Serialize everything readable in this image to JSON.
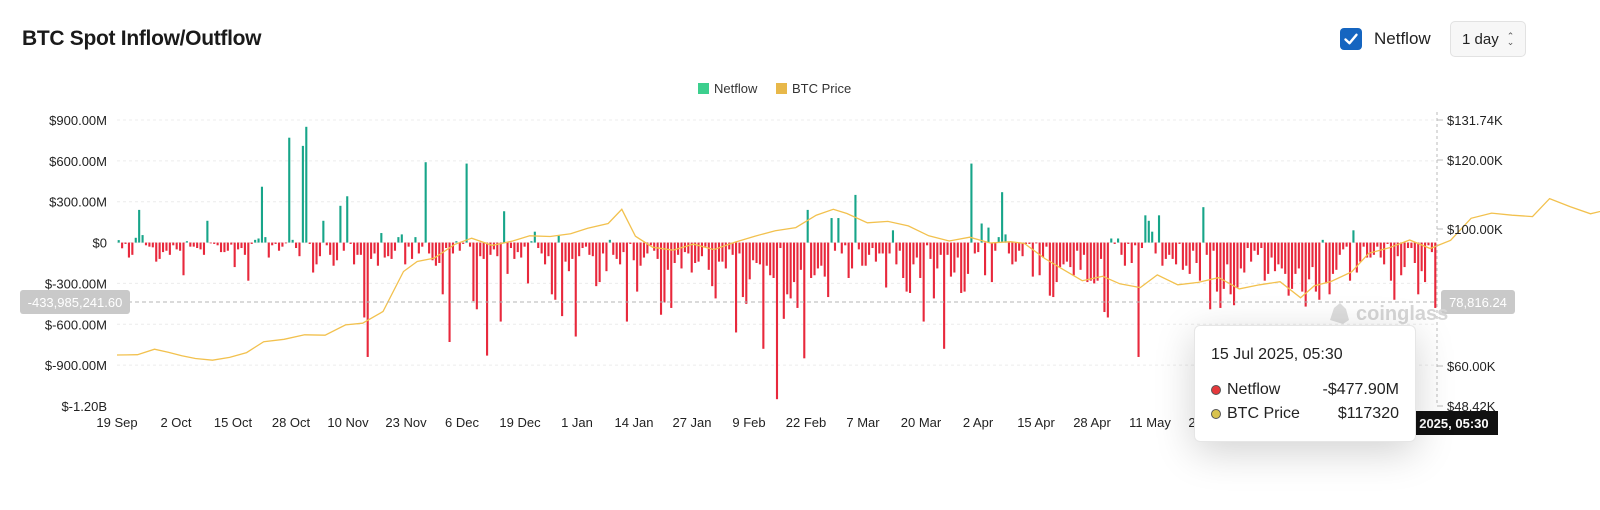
{
  "title": "BTC Spot Inflow/Outflow",
  "controls": {
    "netflow_toggle": {
      "label": "Netflow",
      "checked": true
    },
    "interval": "1 day"
  },
  "watermark": "coinglass",
  "crosshair": {
    "left_value": "-433,985,241.60",
    "right_value": "78,816.24",
    "bottom_value": "l 2025, 05:30"
  },
  "tooltip": {
    "date": "15 Jul 2025, 05:30",
    "rows": [
      {
        "label": "Netflow",
        "value": "-$477.90M",
        "color": "#e5383b"
      },
      {
        "label": "BTC Price",
        "value": "$117320",
        "color": "#d9c34e"
      }
    ]
  },
  "colors": {
    "inflow": "#17a589",
    "outflow": "#e8283c",
    "price": "#f2c14e",
    "legend_netflow": "#3ccf8e",
    "legend_price": "#e8b84a"
  },
  "chart_data": {
    "type": "bar",
    "legend": [
      "Netflow",
      "BTC Price"
    ],
    "legend_position": "top-center",
    "x_ticks": [
      "19 Sep",
      "2 Oct",
      "15 Oct",
      "28 Oct",
      "10 Nov",
      "23 Nov",
      "6 Dec",
      "19 Dec",
      "1 Jan",
      "14 Jan",
      "27 Jan",
      "9 Feb",
      "22 Feb",
      "7 Mar",
      "20 Mar",
      "2 Apr",
      "15 Apr",
      "28 Apr",
      "11 May",
      "2"
    ],
    "y_left": {
      "ticks": [
        "$900.00M",
        "$600.00M",
        "$300.00M",
        "$0",
        "$-300.00M",
        "$-600.00M",
        "$-900.00M",
        "$-1.20B"
      ],
      "range": [
        -1200,
        900
      ],
      "unit": "M USD"
    },
    "y_right": {
      "ticks": [
        "$131.74K",
        "$120.00K",
        "$100.00K",
        "$60.00K",
        "$48.42K"
      ],
      "range": [
        48420,
        131740
      ],
      "unit": "USD"
    },
    "grid": true,
    "series": [
      {
        "name": "Netflow",
        "type": "bar",
        "unit": "M USD",
        "values": [
          18,
          -42,
          -10,
          -110,
          -90,
          35,
          240,
          55,
          -20,
          -30,
          -35,
          -140,
          -120,
          -70,
          -60,
          -90,
          -20,
          -50,
          -60,
          -240,
          10,
          -30,
          -30,
          -40,
          -50,
          -90,
          160,
          -5,
          -10,
          -20,
          -70,
          -70,
          -60,
          -15,
          -180,
          -50,
          -40,
          -90,
          -280,
          -10,
          20,
          30,
          410,
          40,
          -110,
          -20,
          -10,
          -60,
          -30,
          -5,
          770,
          20,
          -40,
          -100,
          710,
          850,
          -10,
          -220,
          -160,
          -100,
          160,
          -20,
          -90,
          -170,
          -130,
          270,
          -60,
          340,
          -10,
          -160,
          -90,
          -90,
          -550,
          -840,
          -120,
          -80,
          -170,
          70,
          -110,
          -100,
          -120,
          -60,
          40,
          60,
          -160,
          -30,
          -120,
          40,
          -80,
          -30,
          590,
          -80,
          -130,
          -170,
          -150,
          -380,
          -40,
          -730,
          -80,
          10,
          -60,
          -10,
          580,
          -30,
          -430,
          -490,
          -100,
          -120,
          -830,
          -90,
          -50,
          -100,
          -580,
          230,
          -230,
          -40,
          -120,
          -70,
          -110,
          -30,
          -300,
          10,
          80,
          -40,
          -80,
          -160,
          -100,
          -380,
          -420,
          50,
          -540,
          -140,
          -210,
          -120,
          -690,
          -100,
          -40,
          -30,
          -90,
          -100,
          -320,
          -290,
          -80,
          -210,
          20,
          -90,
          -120,
          -160,
          -70,
          -580,
          -10,
          -130,
          -360,
          -170,
          -110,
          -80,
          -20,
          -60,
          -120,
          -530,
          -440,
          -200,
          -480,
          -150,
          -90,
          -190,
          -70,
          -80,
          -220,
          -150,
          -140,
          -100,
          -30,
          -200,
          -320,
          -410,
          -140,
          -140,
          -190,
          -50,
          -90,
          -660,
          -80,
          -400,
          -450,
          -270,
          -130,
          -150,
          -160,
          -780,
          -170,
          -240,
          -260,
          -1150,
          -40,
          -560,
          -380,
          -410,
          -290,
          -480,
          -200,
          -850,
          240,
          -260,
          -240,
          -190,
          -170,
          -250,
          -400,
          180,
          -60,
          180,
          -80,
          -20,
          -260,
          -190,
          350,
          -50,
          -170,
          -170,
          -90,
          -40,
          -140,
          -80,
          -80,
          -330,
          -80,
          90,
          -160,
          -60,
          -260,
          -360,
          -370,
          -160,
          -110,
          -260,
          -580,
          -20,
          -120,
          -410,
          -190,
          -90,
          -780,
          -90,
          -250,
          -220,
          -110,
          -370,
          -360,
          -230,
          580,
          -80,
          -70,
          140,
          -240,
          110,
          -290,
          -60,
          40,
          370,
          60,
          -80,
          -160,
          -140,
          -60,
          -100,
          -10,
          -10,
          -250,
          -5,
          -240,
          -110,
          -30,
          -390,
          -400,
          -290,
          -180,
          -160,
          -140,
          -180,
          -240,
          -60,
          -200,
          -90,
          -290,
          -280,
          -300,
          -280,
          -120,
          -510,
          -550,
          30,
          -10,
          30,
          -90,
          -170,
          -10,
          -150,
          -20,
          -840,
          -40,
          200,
          160,
          80,
          -80,
          200,
          -170,
          -120,
          -90,
          -120,
          -160,
          -10,
          -200,
          -170,
          -230,
          -60,
          -150,
          -280,
          260,
          -90,
          -490,
          -60,
          -360,
          -480,
          -340,
          -160,
          -380,
          -460,
          -330,
          -190,
          -220,
          -40,
          -140,
          -60,
          -90,
          -40,
          -280,
          -230,
          -110,
          -210,
          -160,
          -190,
          -230,
          -390,
          -340,
          -230,
          -190,
          -360,
          -470,
          -270,
          -180,
          -360,
          -420,
          20,
          -300,
          -380,
          -230,
          -200,
          -90,
          -50,
          -30,
          -280,
          90,
          -220,
          -140,
          -30,
          -110,
          -110,
          -90,
          -30,
          -110,
          -160,
          -10,
          -280,
          -420,
          -100,
          -240,
          -180,
          -40,
          -40,
          -150,
          -380,
          -210,
          -290,
          -20,
          -70,
          -480
        ]
      },
      {
        "name": "BTC Price",
        "type": "line",
        "unit": "USD",
        "points": [
          [
            0,
            63200
          ],
          [
            6,
            63300
          ],
          [
            11,
            64900
          ],
          [
            15,
            64000
          ],
          [
            19,
            63000
          ],
          [
            23,
            62200
          ],
          [
            28,
            61700
          ],
          [
            33,
            62500
          ],
          [
            38,
            63900
          ],
          [
            43,
            67100
          ],
          [
            49,
            67800
          ],
          [
            55,
            69100
          ],
          [
            61,
            69000
          ],
          [
            67,
            72000
          ],
          [
            72,
            72500
          ],
          [
            78,
            75900
          ],
          [
            84,
            87600
          ],
          [
            88,
            90500
          ],
          [
            93,
            91500
          ],
          [
            99,
            95500
          ],
          [
            104,
            97300
          ],
          [
            110,
            95200
          ],
          [
            116,
            96500
          ],
          [
            121,
            98000
          ],
          [
            127,
            97800
          ],
          [
            133,
            98600
          ],
          [
            138,
            100200
          ],
          [
            144,
            101600
          ],
          [
            148,
            105700
          ],
          [
            152,
            97900
          ],
          [
            157,
            94700
          ],
          [
            163,
            93800
          ],
          [
            169,
            95600
          ],
          [
            175,
            94000
          ],
          [
            181,
            96100
          ],
          [
            187,
            97900
          ],
          [
            193,
            99500
          ],
          [
            199,
            100400
          ],
          [
            205,
            104000
          ],
          [
            210,
            105700
          ],
          [
            214,
            104500
          ],
          [
            220,
            101800
          ],
          [
            226,
            102200
          ],
          [
            232,
            100900
          ],
          [
            238,
            98000
          ],
          [
            244,
            96500
          ],
          [
            250,
            97600
          ],
          [
            256,
            95900
          ],
          [
            262,
            96300
          ],
          [
            266,
            95800
          ],
          [
            272,
            91400
          ],
          [
            277,
            88400
          ],
          [
            283,
            84900
          ],
          [
            289,
            86200
          ],
          [
            294,
            84000
          ],
          [
            300,
            82900
          ],
          [
            305,
            86600
          ],
          [
            311,
            83700
          ],
          [
            317,
            84400
          ],
          [
            323,
            85800
          ],
          [
            329,
            82500
          ],
          [
            335,
            83700
          ],
          [
            341,
            84600
          ],
          [
            347,
            79900
          ],
          [
            351,
            83400
          ],
          [
            356,
            84700
          ],
          [
            362,
            87500
          ],
          [
            367,
            92900
          ],
          [
            373,
            94500
          ],
          [
            379,
            96800
          ],
          [
            385,
            94300
          ],
          [
            391,
            96700
          ],
          [
            397,
            103100
          ],
          [
            403,
            104600
          ],
          [
            409,
            104000
          ],
          [
            415,
            103600
          ],
          [
            420,
            108800
          ],
          [
            426,
            106500
          ],
          [
            432,
            104400
          ],
          [
            437,
            105600
          ],
          [
            443,
            104800
          ],
          [
            449,
            103900
          ],
          [
            455,
            104700
          ],
          [
            460,
            105000
          ],
          [
            466,
            105800
          ],
          [
            472,
            108200
          ],
          [
            478,
            108300
          ],
          [
            484,
            108900
          ],
          [
            490,
            111300
          ],
          [
            496,
            117500
          ],
          [
            501,
            119900
          ],
          [
            505,
            117320
          ]
        ]
      }
    ]
  }
}
